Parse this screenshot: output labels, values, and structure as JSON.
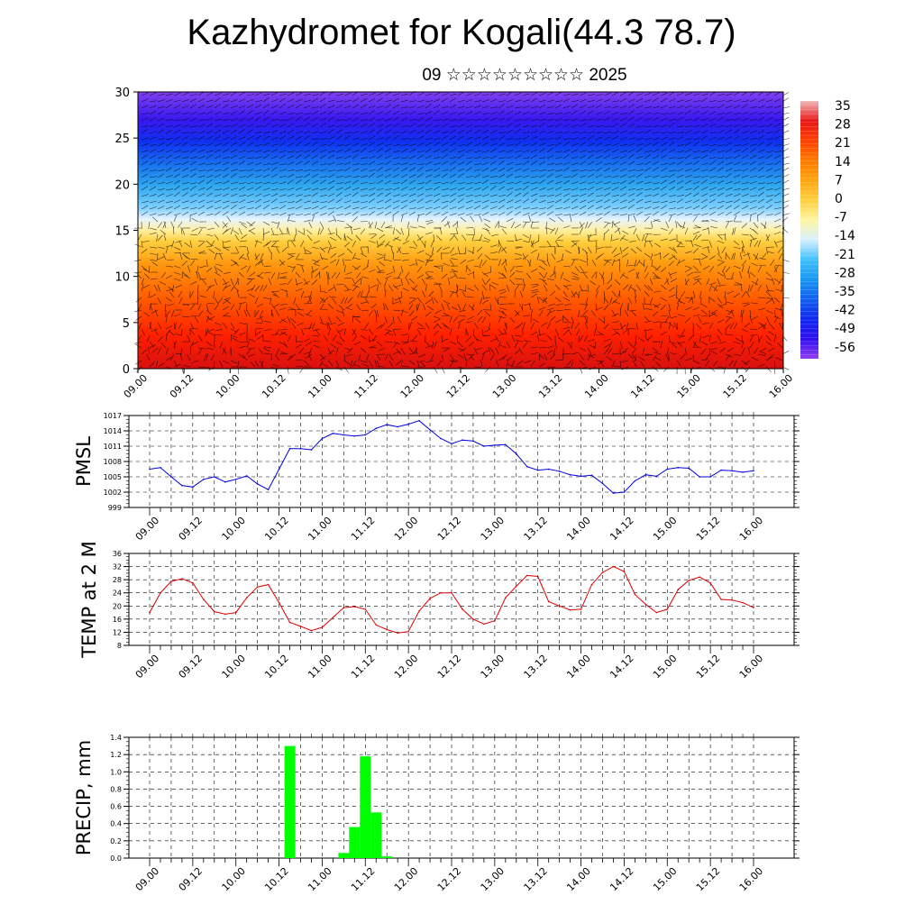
{
  "title": "Kazhydromet for Kogali(44.3 78.7)",
  "subtitle": "09 ☆☆☆☆☆☆☆☆☆ 2025",
  "chart_data": [
    {
      "type": "heatmap",
      "description": "Temperature cross-section with wind barbs",
      "ylim": [
        0,
        30
      ],
      "yticks": [
        "0",
        "5",
        "10",
        "15",
        "20",
        "25",
        "30"
      ],
      "xticks": [
        "09.00",
        "09.12",
        "10.00",
        "10.12",
        "11.00",
        "11.12",
        "12.00",
        "12.12",
        "13.00",
        "13.12",
        "14.00",
        "14.12",
        "15.00",
        "15.12",
        "16.00"
      ],
      "colorbar": {
        "labels": [
          "35",
          "28",
          "21",
          "14",
          "7",
          "0",
          "-7",
          "-14",
          "-21",
          "-28",
          "-35",
          "-42",
          "-49",
          "-56"
        ],
        "colors": [
          "#f0b8b8",
          "#e81818",
          "#ff4000",
          "#ff7a00",
          "#ffa510",
          "#ffd040",
          "#fff4a0",
          "#d8f0ff",
          "#40c0ff",
          "#1898f0",
          "#1060f0",
          "#1028f0",
          "#3010f0",
          "#9040f0"
        ]
      }
    },
    {
      "type": "line",
      "ylabel": "PMSL",
      "ylim": [
        999,
        1017
      ],
      "yticks": [
        "999",
        "1002",
        "1005",
        "1008",
        "1011",
        "1014",
        "1017"
      ],
      "xticks": [
        "09.00",
        "09.12",
        "10.00",
        "10.12",
        "11.00",
        "11.12",
        "12.00",
        "12.12",
        "13.00",
        "13.12",
        "14.00",
        "14.12",
        "15.00",
        "15.12",
        "16.00"
      ],
      "color": "#0000dd",
      "values": [
        1006.5,
        1006.8,
        1005.0,
        1003.3,
        1003.0,
        1004.5,
        1005.0,
        1004.0,
        1004.5,
        1005.2,
        1003.6,
        1002.5,
        1006.5,
        1010.5,
        1010.5,
        1010.3,
        1012.5,
        1013.5,
        1013.2,
        1013.0,
        1013.2,
        1014.5,
        1015.2,
        1014.8,
        1015.3,
        1016.0,
        1014.2,
        1012.5,
        1011.5,
        1012.2,
        1012.0,
        1011.0,
        1011.2,
        1011.3,
        1009.5,
        1007.0,
        1006.3,
        1006.5,
        1006.1,
        1005.4,
        1005.1,
        1005.3,
        1003.7,
        1001.8,
        1002.0,
        1004.2,
        1005.4,
        1005.1,
        1006.5,
        1006.8,
        1006.7,
        1005.0,
        1005.0,
        1006.3,
        1006.2,
        1005.9,
        1006.2
      ]
    },
    {
      "type": "line",
      "ylabel": "TEMP at 2 M",
      "ylim": [
        8,
        36
      ],
      "yticks": [
        "8",
        "12",
        "16",
        "20",
        "24",
        "28",
        "32",
        "36"
      ],
      "xticks": [
        "09.00",
        "09.12",
        "10.00",
        "10.12",
        "11.00",
        "11.12",
        "12.00",
        "12.12",
        "13.00",
        "13.12",
        "14.00",
        "14.12",
        "15.00",
        "15.12",
        "16.00"
      ],
      "color": "#dd0000",
      "values": [
        18.0,
        24.0,
        27.5,
        28.3,
        27.0,
        22.0,
        18.3,
        17.5,
        18.0,
        22.5,
        25.8,
        26.5,
        21.0,
        15.0,
        13.8,
        12.5,
        13.5,
        16.5,
        19.5,
        19.8,
        19.0,
        14.2,
        12.8,
        11.8,
        12.2,
        18.5,
        22.3,
        24.0,
        24.0,
        19.0,
        16.0,
        14.5,
        15.5,
        22.5,
        26.0,
        29.3,
        29.0,
        21.3,
        20.0,
        18.8,
        19.0,
        26.5,
        30.2,
        32.0,
        30.5,
        23.5,
        20.5,
        18.0,
        19.0,
        25.0,
        27.8,
        28.8,
        27.0,
        22.0,
        21.8,
        21.0,
        19.5
      ]
    },
    {
      "type": "bar",
      "ylabel": "PRECIP, mm",
      "ylim": [
        0,
        1.4
      ],
      "yticks": [
        "0.0",
        "0.2",
        "0.4",
        "0.6",
        "0.8",
        "1.0",
        "1.2",
        "1.4"
      ],
      "xticks": [
        "09.00",
        "09.12",
        "10.00",
        "10.12",
        "11.00",
        "11.12",
        "12.00",
        "12.12",
        "13.00",
        "13.12",
        "14.00",
        "14.12",
        "15.00",
        "15.12",
        "16.00"
      ],
      "color": "#00ff00",
      "values": [
        0,
        0,
        0,
        0,
        0,
        0,
        0,
        0,
        0,
        0,
        0,
        0,
        0,
        1.3,
        0,
        0,
        0,
        0,
        0.06,
        0.36,
        1.18,
        0.53,
        0.02,
        0,
        0,
        0,
        0,
        0,
        0,
        0,
        0,
        0,
        0,
        0,
        0,
        0,
        0,
        0,
        0,
        0,
        0,
        0,
        0,
        0,
        0,
        0,
        0,
        0,
        0,
        0,
        0,
        0,
        0,
        0,
        0,
        0,
        0
      ]
    }
  ]
}
